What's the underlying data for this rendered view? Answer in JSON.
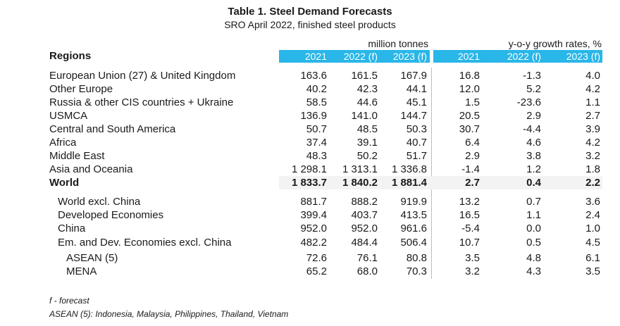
{
  "title": "Table 1. Steel Demand Forecasts",
  "subtitle": "SRO April 2022, finished steel products",
  "unit_left": "million tonnes",
  "unit_right": "y-o-y growth rates, %",
  "regions_header": "Regions",
  "columns": [
    "2021",
    "2022 (f)",
    "2023 (f)",
    "2021",
    "2022 (f)",
    "2023 (f)"
  ],
  "rows": [
    {
      "label": "European Union (27) & United Kingdom",
      "values": [
        "163.6",
        "161.5",
        "167.9",
        "16.8",
        "-1.3",
        "4.0"
      ]
    },
    {
      "label": "Other Europe",
      "values": [
        "40.2",
        "42.3",
        "44.1",
        "12.0",
        "5.2",
        "4.2"
      ]
    },
    {
      "label": "Russia & other CIS countries + Ukraine",
      "values": [
        "58.5",
        "44.6",
        "45.1",
        "1.5",
        "-23.6",
        "1.1"
      ]
    },
    {
      "label": "USMCA",
      "values": [
        "136.9",
        "141.0",
        "144.7",
        "20.5",
        "2.9",
        "2.7"
      ]
    },
    {
      "label": "Central and South America",
      "values": [
        "50.7",
        "48.5",
        "50.3",
        "30.7",
        "-4.4",
        "3.9"
      ]
    },
    {
      "label": "Africa",
      "values": [
        "37.4",
        "39.1",
        "40.7",
        "6.4",
        "4.6",
        "4.2"
      ]
    },
    {
      "label": "Middle East",
      "values": [
        "48.3",
        "50.2",
        "51.7",
        "2.9",
        "3.8",
        "3.2"
      ]
    },
    {
      "label": "Asia and Oceania",
      "values": [
        "1 298.1",
        "1 313.1",
        "1 336.8",
        "-1.4",
        "1.2",
        "1.8"
      ]
    },
    {
      "label": "World",
      "values": [
        "1 833.7",
        "1 840.2",
        "1 881.4",
        "2.7",
        "0.4",
        "2.2"
      ]
    },
    {
      "label": "World excl. China",
      "values": [
        "881.7",
        "888.2",
        "919.9",
        "13.2",
        "0.7",
        "3.6"
      ]
    },
    {
      "label": "Developed Economies",
      "values": [
        "399.4",
        "403.7",
        "413.5",
        "16.5",
        "1.1",
        "2.4"
      ]
    },
    {
      "label": "China",
      "values": [
        "952.0",
        "952.0",
        "961.6",
        "-5.4",
        "0.0",
        "1.0"
      ]
    },
    {
      "label": "Em. and Dev. Economies excl. China",
      "values": [
        "482.2",
        "484.4",
        "506.4",
        "10.7",
        "0.5",
        "4.5"
      ]
    },
    {
      "label": "ASEAN (5)",
      "values": [
        "72.6",
        "76.1",
        "80.8",
        "3.5",
        "4.8",
        "6.1"
      ]
    },
    {
      "label": "MENA",
      "values": [
        "65.2",
        "68.0",
        "70.3",
        "3.2",
        "4.3",
        "3.5"
      ]
    }
  ],
  "notes": {
    "forecast": "f - forecast",
    "asean": "ASEAN (5): Indonesia, Malaysia, Philippines, Thailand, Vietnam"
  },
  "colors": {
    "header_bar": "#29b6e8"
  }
}
